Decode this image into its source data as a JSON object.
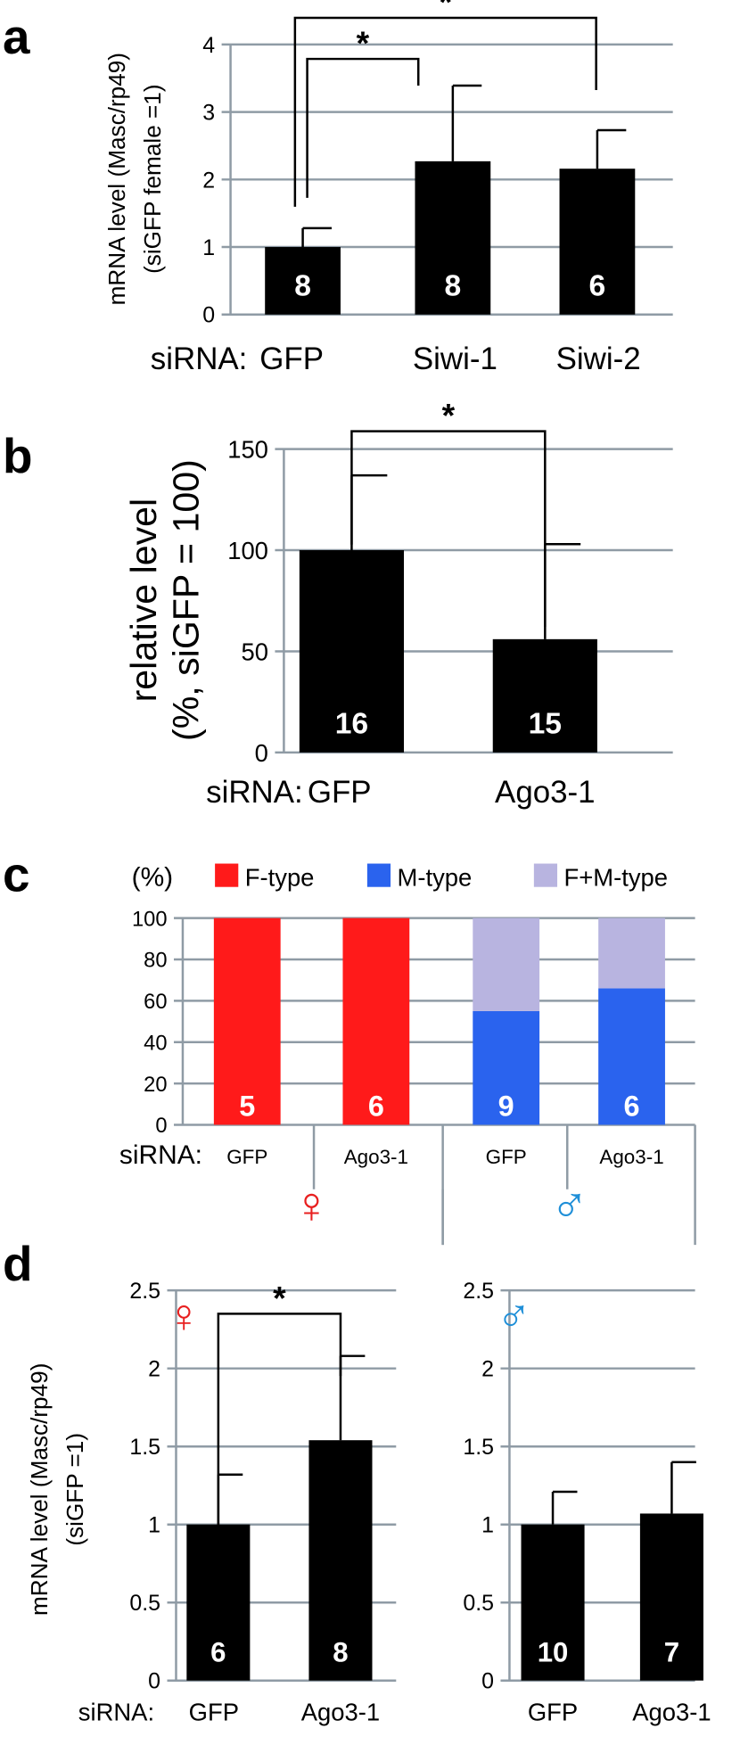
{
  "panel_labels": [
    "a",
    "b",
    "c",
    "d"
  ],
  "colors": {
    "bar": "#000000",
    "grid": "#8f9ba5",
    "f_type": "#ff1a1a",
    "m_type": "#2a63ee",
    "fm_type": "#b8b4e0",
    "female_symbol": "#e81f1f",
    "male_symbol": "#1f8fd8",
    "bar_label": "#ffffff"
  },
  "siRNA_label": "siRNA:",
  "female_symbol": "♀",
  "male_symbol": "♂",
  "chart_data": [
    {
      "panel": "a",
      "type": "bar",
      "title": "",
      "xlabel": "",
      "ylabel": "mRNA level (Masc/rp49)",
      "ylabel_line2": "(siGFP female =1)",
      "categories": [
        "GFP",
        "Siwi-1",
        "Siwi-2"
      ],
      "values": [
        1.0,
        2.27,
        2.16
      ],
      "errors": [
        0.28,
        1.12,
        0.57
      ],
      "n_labels": [
        "8",
        "8",
        "6"
      ],
      "ylim": [
        0,
        4
      ],
      "yticks": [
        "0",
        "1",
        "2",
        "3",
        "4"
      ],
      "grid": true,
      "significance": [
        {
          "from": 0,
          "to": 1,
          "label": "*"
        },
        {
          "from": 0,
          "to": 2,
          "label": "*"
        }
      ]
    },
    {
      "panel": "b",
      "type": "bar",
      "title": "",
      "xlabel": "",
      "ylabel": "relative level",
      "ylabel_line2": "(%, siGFP = 100)",
      "categories": [
        "GFP",
        "Ago3-1"
      ],
      "values": [
        100,
        56
      ],
      "errors": [
        37,
        47
      ],
      "n_labels": [
        "16",
        "15"
      ],
      "ylim": [
        0,
        150
      ],
      "yticks": [
        "0",
        "50",
        "100",
        "150"
      ],
      "grid": true,
      "significance": [
        {
          "from": 0,
          "to": 1,
          "label": "*"
        }
      ]
    },
    {
      "panel": "c",
      "type": "bar",
      "stacked": true,
      "title": "",
      "unit_label": "(%)",
      "categories": [
        "GFP",
        "Ago3-1",
        "GFP",
        "Ago3-1"
      ],
      "groups": [
        "♀",
        "♂"
      ],
      "series": [
        {
          "name": "F-type",
          "values": [
            100,
            100,
            0,
            0
          ]
        },
        {
          "name": "M-type",
          "values": [
            0,
            0,
            55,
            66
          ]
        },
        {
          "name": "F+M-type",
          "values": [
            0,
            0,
            45,
            34
          ]
        }
      ],
      "n_labels": [
        "5",
        "6",
        "9",
        "6"
      ],
      "ylim": [
        0,
        100
      ],
      "yticks": [
        "0",
        "20",
        "40",
        "60",
        "80",
        "100"
      ],
      "grid": true,
      "legend": "top"
    },
    {
      "panel": "d-female",
      "type": "bar",
      "title": "",
      "ylabel": "mRNA level (Masc/rp49)",
      "ylabel_line2": "(siGFP =1)",
      "categories": [
        "GFP",
        "Ago3-1"
      ],
      "values": [
        1.0,
        1.54
      ],
      "errors": [
        0.32,
        0.54
      ],
      "n_labels": [
        "6",
        "8"
      ],
      "ylim": [
        0,
        2.5
      ],
      "yticks": [
        "0",
        "0.5",
        "1",
        "1.5",
        "2",
        "2.5"
      ],
      "grid": true,
      "significance": [
        {
          "from": 0,
          "to": 1,
          "label": "*"
        }
      ]
    },
    {
      "panel": "d-male",
      "type": "bar",
      "title": "",
      "categories": [
        "GFP",
        "Ago3-1"
      ],
      "values": [
        1.0,
        1.07
      ],
      "errors": [
        0.21,
        0.33
      ],
      "n_labels": [
        "10",
        "7"
      ],
      "ylim": [
        0,
        2.5
      ],
      "yticks": [
        "0",
        "0.5",
        "1",
        "1.5",
        "2",
        "2.5"
      ],
      "grid": true
    }
  ]
}
